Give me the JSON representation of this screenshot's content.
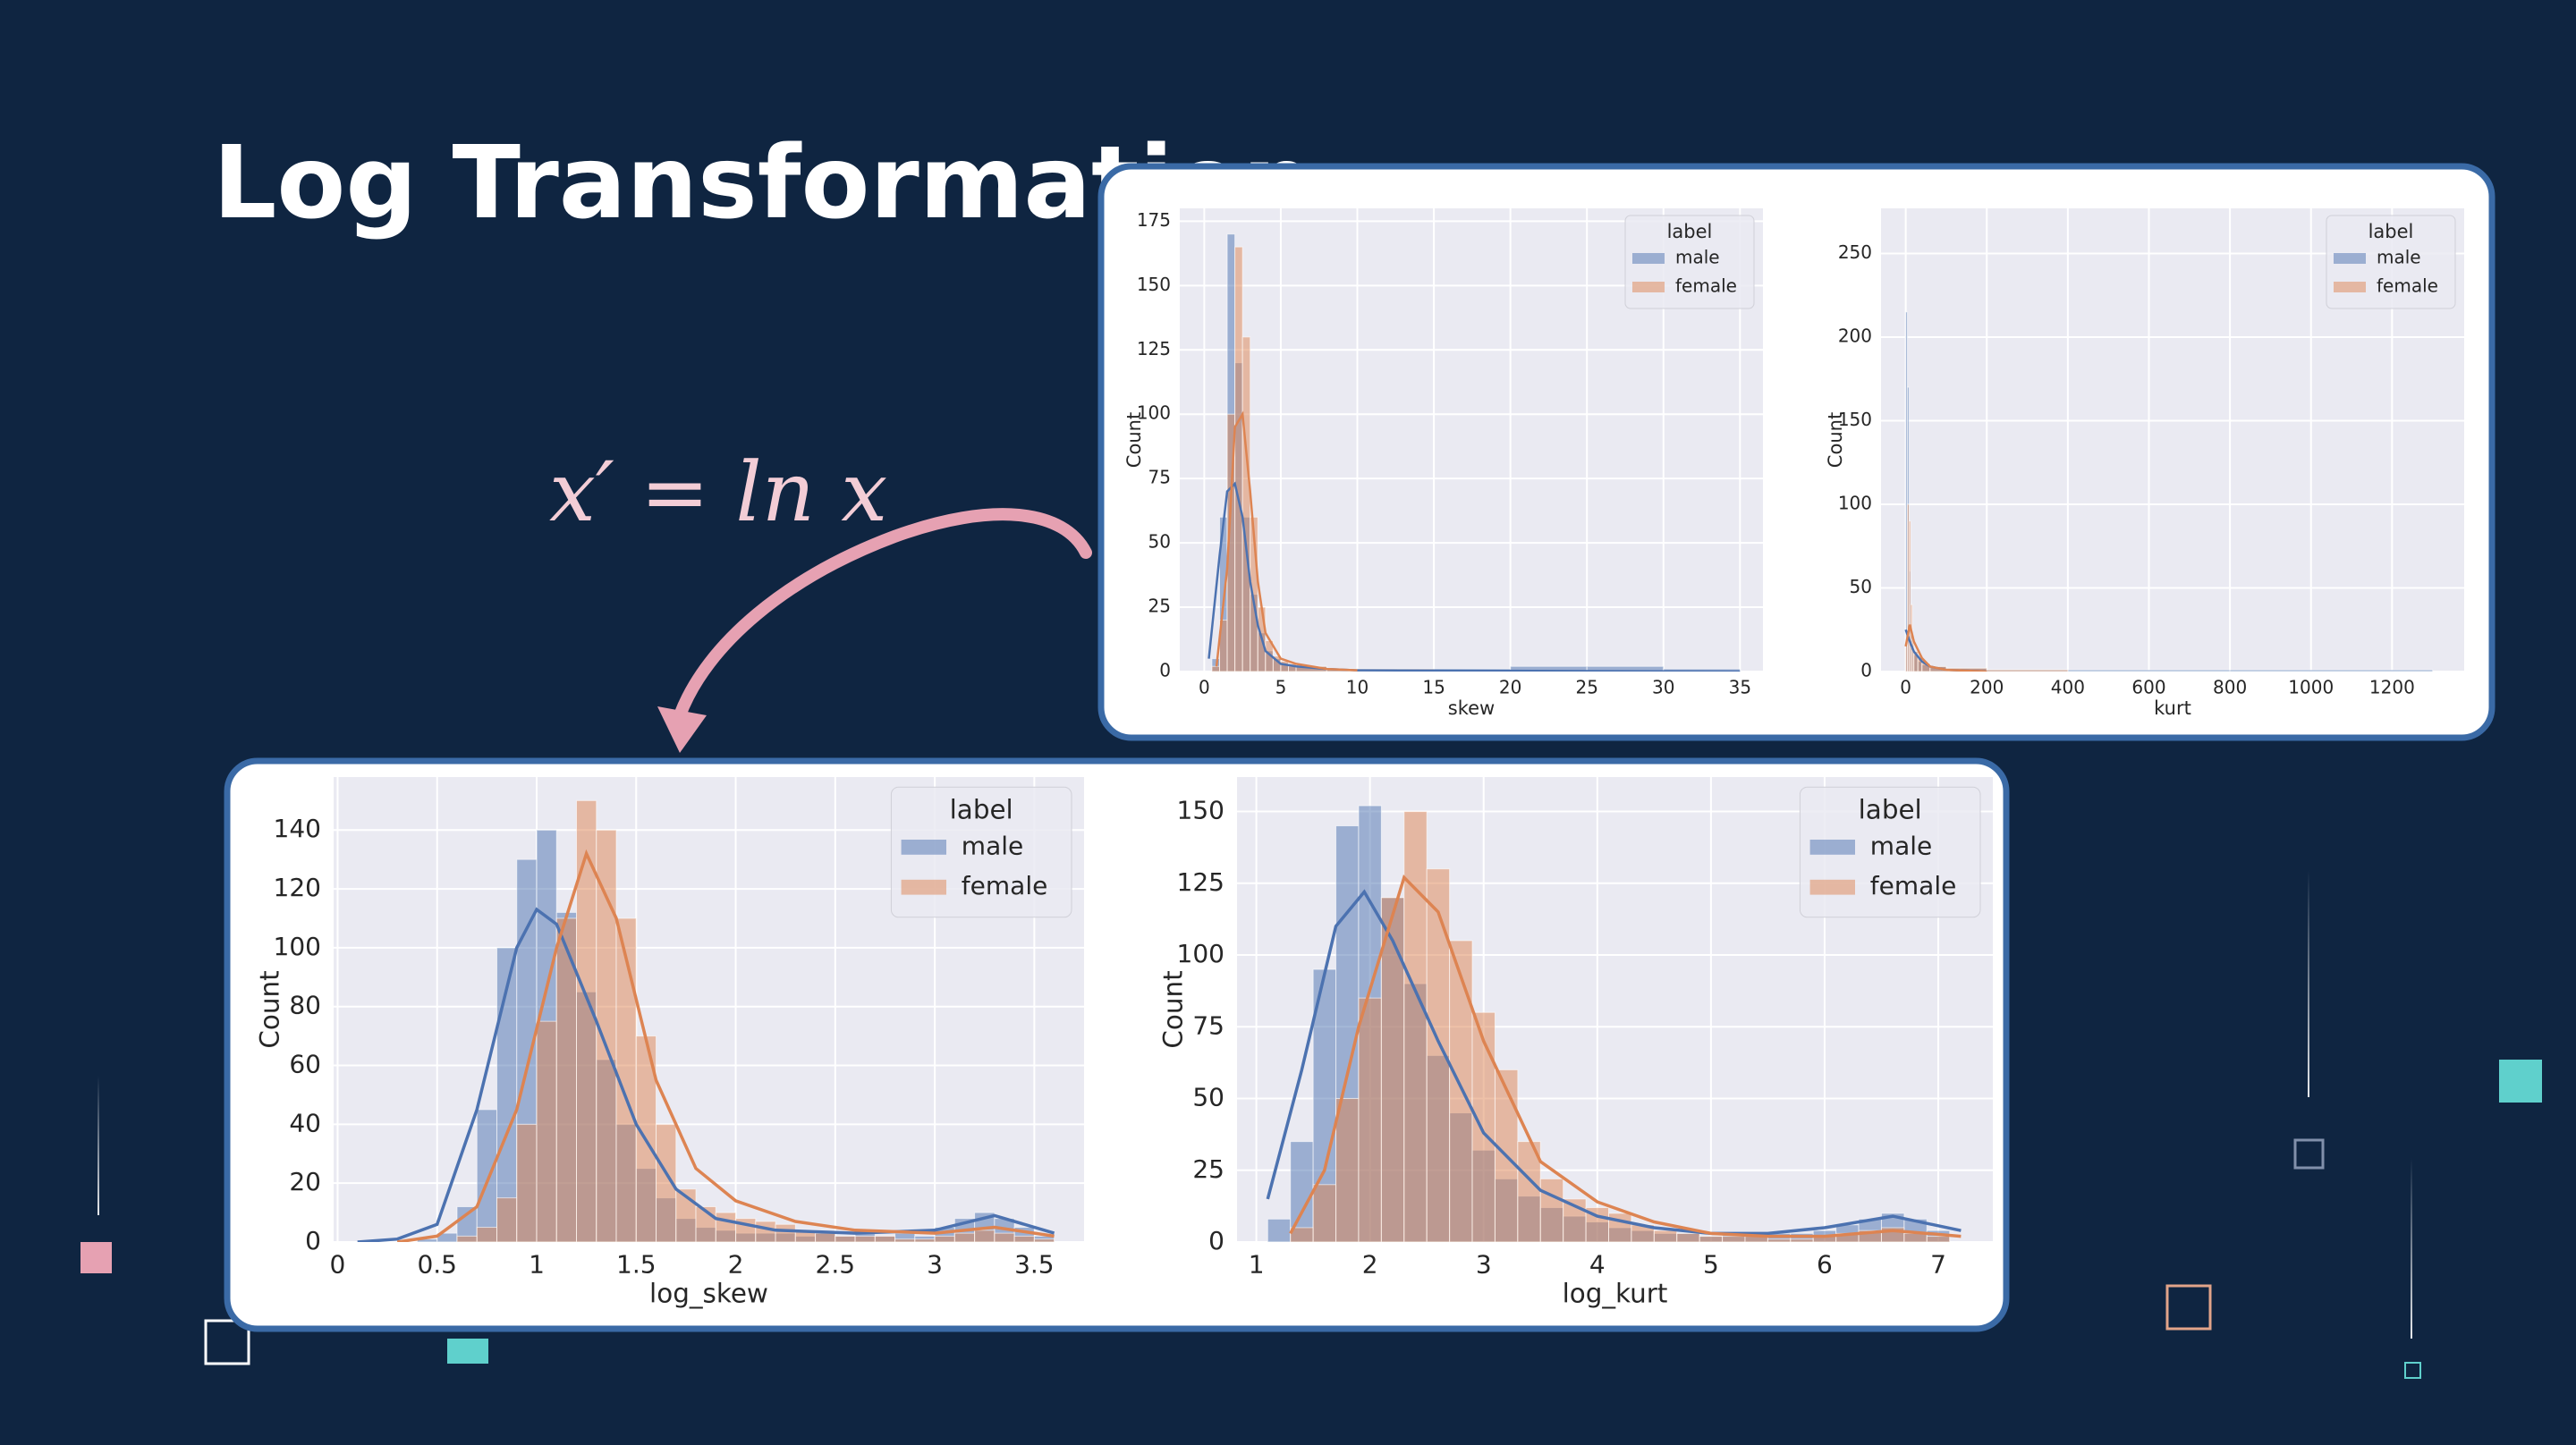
{
  "title": "Log Transformation",
  "formula": "x′ = ln x",
  "chart_data": [
    {
      "type": "histogram",
      "xlabel": "skew",
      "ylabel": "Count",
      "legend_title": "label",
      "legend": "upper right",
      "grid": true,
      "xlim": [
        -1.6,
        36.5
      ],
      "ylim": [
        0,
        180
      ],
      "xticks": [
        0,
        5,
        10,
        15,
        20,
        25,
        30,
        35
      ],
      "yticks": [
        0,
        25,
        50,
        75,
        100,
        125,
        150,
        175
      ],
      "bins": [
        0,
        0.5,
        1,
        1.5,
        2,
        2.5,
        3,
        3.5,
        4,
        4.5,
        5,
        5.5,
        6,
        8,
        10,
        15,
        20,
        25,
        30,
        35
      ],
      "series": [
        {
          "name": "male",
          "color": "#4c72b0",
          "values": [
            0,
            5,
            60,
            170,
            120,
            60,
            30,
            15,
            8,
            5,
            3,
            2,
            2,
            1,
            1,
            1,
            2,
            2,
            1
          ],
          "kde_x": [
            0.3,
            1,
            1.5,
            2,
            2.5,
            3,
            3.5,
            4,
            5,
            6,
            8,
            10,
            35
          ],
          "kde": [
            5,
            45,
            70,
            73,
            60,
            35,
            18,
            8,
            3,
            2,
            1,
            0.5,
            0
          ]
        },
        {
          "name": "female",
          "color": "#dd8452",
          "values": [
            0,
            2,
            20,
            100,
            165,
            130,
            60,
            25,
            12,
            6,
            4,
            3,
            2,
            1,
            1,
            0,
            0,
            0,
            0
          ],
          "kde_x": [
            0.8,
            1.5,
            2,
            2.5,
            3,
            3.5,
            4,
            5,
            6,
            8,
            10
          ],
          "kde": [
            2,
            40,
            95,
            100,
            70,
            35,
            15,
            5,
            3,
            1,
            0.5
          ]
        }
      ]
    },
    {
      "type": "histogram",
      "xlabel": "kurt",
      "ylabel": "Count",
      "legend_title": "label",
      "legend": "upper right",
      "grid": true,
      "xlim": [
        -61,
        1378
      ],
      "ylim": [
        0,
        277
      ],
      "xticks": [
        0,
        200,
        400,
        600,
        800,
        1000,
        1200
      ],
      "yticks": [
        0,
        50,
        100,
        150,
        200,
        250
      ],
      "bins": [
        0,
        4,
        8,
        12,
        16,
        20,
        30,
        40,
        60,
        100,
        200,
        400,
        800,
        1300
      ],
      "series": [
        {
          "name": "male",
          "color": "#4c72b0",
          "values": [
            215,
            170,
            60,
            25,
            15,
            10,
            6,
            4,
            3,
            2,
            1,
            1,
            1
          ],
          "kde_x": [
            0,
            10,
            20,
            40,
            60,
            100,
            200
          ],
          "kde": [
            25,
            18,
            12,
            6,
            3,
            1,
            0
          ]
        },
        {
          "name": "female",
          "color": "#dd8452",
          "values": [
            20,
            100,
            90,
            40,
            20,
            12,
            8,
            5,
            3,
            2,
            1,
            0,
            0
          ],
          "kde_x": [
            0,
            10,
            20,
            40,
            60,
            100,
            200
          ],
          "kde": [
            15,
            28,
            18,
            8,
            3,
            1,
            0
          ]
        }
      ]
    },
    {
      "type": "histogram",
      "xlabel": "log_skew",
      "ylabel": "Count",
      "legend_title": "label",
      "legend": "upper right",
      "grid": true,
      "xlim": [
        -0.02,
        3.75
      ],
      "ylim": [
        0,
        158
      ],
      "xticks": [
        0.0,
        0.5,
        1.0,
        1.5,
        2.0,
        2.5,
        3.0,
        3.5
      ],
      "yticks": [
        0,
        20,
        40,
        60,
        80,
        100,
        120,
        140
      ],
      "bins": [
        0.3,
        0.4,
        0.5,
        0.6,
        0.7,
        0.8,
        0.9,
        1.0,
        1.1,
        1.2,
        1.3,
        1.4,
        1.5,
        1.6,
        1.7,
        1.8,
        1.9,
        2.0,
        2.1,
        2.2,
        2.3,
        2.4,
        2.5,
        2.6,
        2.7,
        2.8,
        2.9,
        3.0,
        3.1,
        3.2,
        3.3,
        3.4,
        3.5,
        3.6
      ],
      "series": [
        {
          "name": "male",
          "color": "#4c72b0",
          "values": [
            0,
            1,
            3,
            12,
            45,
            100,
            130,
            140,
            112,
            85,
            62,
            40,
            25,
            15,
            8,
            5,
            4,
            3,
            3,
            3,
            2,
            3,
            2,
            3,
            2,
            3,
            2,
            5,
            8,
            10,
            8,
            5,
            2
          ],
          "kde_x": [
            0.1,
            0.3,
            0.5,
            0.7,
            0.9,
            1.0,
            1.1,
            1.3,
            1.5,
            1.7,
            1.9,
            2.2,
            2.6,
            3.0,
            3.3,
            3.6
          ],
          "kde": [
            0,
            1,
            6,
            45,
            100,
            113,
            108,
            75,
            40,
            18,
            8,
            4,
            3,
            4,
            9,
            3
          ]
        },
        {
          "name": "female",
          "color": "#dd8452",
          "values": [
            0,
            0,
            0,
            2,
            5,
            15,
            40,
            75,
            110,
            150,
            140,
            110,
            70,
            40,
            18,
            12,
            10,
            8,
            7,
            6,
            4,
            3,
            2,
            2,
            2,
            1,
            1,
            2,
            3,
            4,
            3,
            2,
            1
          ],
          "kde_x": [
            0.3,
            0.5,
            0.7,
            0.9,
            1.1,
            1.25,
            1.4,
            1.6,
            1.8,
            2.0,
            2.3,
            2.6,
            3.0,
            3.3,
            3.6
          ],
          "kde": [
            0,
            2,
            12,
            45,
            100,
            132,
            110,
            55,
            25,
            14,
            7,
            4,
            3,
            5,
            2
          ]
        }
      ]
    },
    {
      "type": "histogram",
      "xlabel": "log_kurt",
      "ylabel": "Count",
      "legend_title": "label",
      "legend": "upper right",
      "grid": true,
      "xlim": [
        0.83,
        7.48
      ],
      "ylim": [
        0,
        162
      ],
      "xticks": [
        1,
        2,
        3,
        4,
        5,
        6,
        7
      ],
      "yticks": [
        0,
        25,
        50,
        75,
        100,
        125,
        150
      ],
      "bins": [
        1.1,
        1.3,
        1.5,
        1.7,
        1.9,
        2.1,
        2.3,
        2.5,
        2.7,
        2.9,
        3.1,
        3.3,
        3.5,
        3.7,
        3.9,
        4.1,
        4.3,
        4.5,
        4.7,
        4.9,
        5.1,
        5.3,
        5.5,
        5.7,
        5.9,
        6.1,
        6.3,
        6.5,
        6.7,
        6.9,
        7.1
      ],
      "series": [
        {
          "name": "male",
          "color": "#4c72b0",
          "values": [
            8,
            35,
            95,
            145,
            152,
            120,
            90,
            65,
            45,
            32,
            22,
            16,
            12,
            9,
            7,
            5,
            4,
            3,
            3,
            2,
            3,
            2,
            3,
            3,
            4,
            6,
            8,
            10,
            8,
            4
          ],
          "kde_x": [
            1.1,
            1.4,
            1.7,
            1.95,
            2.2,
            2.6,
            3.0,
            3.5,
            4.0,
            4.5,
            5.0,
            5.5,
            6.0,
            6.6,
            7.2
          ],
          "kde": [
            15,
            60,
            110,
            122,
            105,
            70,
            38,
            18,
            9,
            5,
            3,
            3,
            5,
            9,
            4
          ]
        },
        {
          "name": "female",
          "color": "#dd8452",
          "values": [
            0,
            5,
            20,
            50,
            85,
            120,
            150,
            130,
            105,
            80,
            60,
            35,
            22,
            15,
            12,
            10,
            6,
            4,
            3,
            2,
            2,
            2,
            1,
            1,
            2,
            3,
            4,
            5,
            3,
            2
          ],
          "kde_x": [
            1.3,
            1.6,
            1.9,
            2.3,
            2.6,
            3.0,
            3.5,
            4.0,
            4.5,
            5.0,
            5.5,
            6.0,
            6.6,
            7.2
          ],
          "kde": [
            3,
            25,
            75,
            127,
            115,
            70,
            28,
            14,
            7,
            3,
            2,
            2,
            4,
            2
          ]
        }
      ]
    }
  ]
}
